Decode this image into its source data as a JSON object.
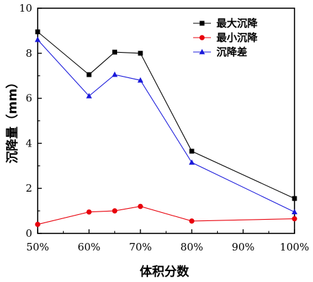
{
  "chart_data": {
    "type": "line",
    "x_tick_labels": [
      "50%",
      "60%",
      "70%",
      "80%",
      "90%",
      "100%"
    ],
    "y_tick_labels": [
      "0",
      "2",
      "4",
      "6",
      "8",
      "10"
    ],
    "xlabel": "体积分数",
    "ylabel": "沉降量（mm）",
    "xlim": [
      50,
      100
    ],
    "ylim": [
      0,
      10
    ],
    "x_ticks": [
      50,
      60,
      70,
      80,
      90,
      100
    ],
    "y_ticks": [
      0,
      2,
      4,
      6,
      8,
      10
    ],
    "grid": false,
    "legend_position": "top-right",
    "series": [
      {
        "name": "最大沉降",
        "color": "#000000",
        "marker": "square",
        "x": [
          50,
          60,
          65,
          70,
          80,
          100
        ],
        "y": [
          8.95,
          7.05,
          8.05,
          8.0,
          3.65,
          1.55
        ]
      },
      {
        "name": "最小沉降",
        "color": "#e8000b",
        "marker": "circle",
        "x": [
          50,
          60,
          65,
          70,
          80,
          100
        ],
        "y": [
          0.4,
          0.95,
          1.0,
          1.2,
          0.55,
          0.65
        ]
      },
      {
        "name": "沉降差",
        "color": "#1a1adb",
        "marker": "triangle",
        "x": [
          50,
          60,
          65,
          70,
          80,
          100
        ],
        "y": [
          8.6,
          6.1,
          7.05,
          6.8,
          3.15,
          0.95
        ]
      }
    ]
  }
}
